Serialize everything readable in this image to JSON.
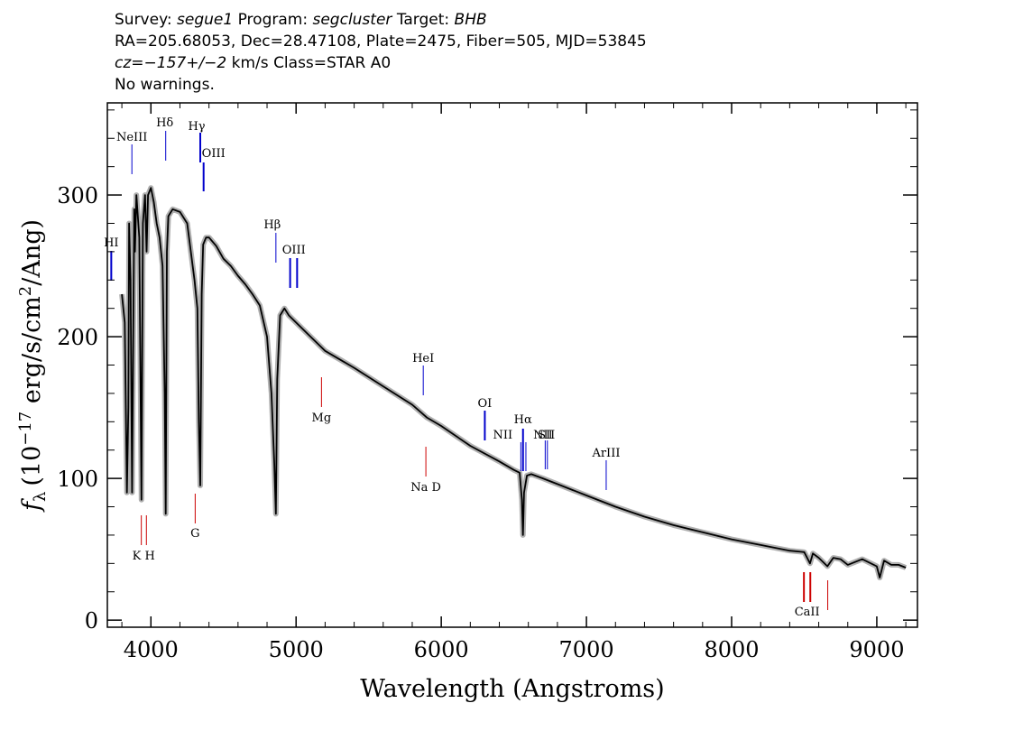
{
  "header": {
    "survey_label": "Survey:",
    "survey": "segue1",
    "program_label": "Program:",
    "program": "segcluster",
    "target_label": "Target:",
    "target": "BHB",
    "line2": "RA=205.68053, Dec=28.47108, Plate=2475, Fiber=505, MJD=53845",
    "cz": "cz=−157+/−2",
    "cz_units": "km/s",
    "class": "Class=STAR A0",
    "warnings": "No warnings."
  },
  "chart_data": {
    "type": "line",
    "xlabel": "Wavelength (Angstroms)",
    "ylabel_prefix": "f",
    "ylabel_sub": "λ",
    "ylabel_units_start": "(10",
    "ylabel_exp1": "−17",
    "ylabel_units_mid": " erg/s/cm",
    "ylabel_exp2": "2",
    "ylabel_units_end": "/Ang)",
    "xlim": [
      3700,
      9280
    ],
    "ylim": [
      -5,
      365
    ],
    "xticks": [
      4000,
      5000,
      6000,
      7000,
      8000,
      9000
    ],
    "xtick_labels": [
      "4000",
      "5000",
      "6000",
      "7000",
      "8000",
      "9000"
    ],
    "yticks": [
      0,
      100,
      200,
      300
    ],
    "ytick_labels": [
      "0",
      "100",
      "200",
      "300"
    ],
    "colors": {
      "spectrum": "#000000",
      "error_band": "#b0b0b0",
      "emission": "#0000cc",
      "absorption": "#cc0000"
    },
    "series": [
      {
        "x": [
          3800,
          3820,
          3835,
          3845,
          3850,
          3860,
          3870,
          3885,
          3890,
          3900,
          3920,
          3935,
          3945,
          3960,
          3970,
          3980,
          4000,
          4020,
          4040,
          4060,
          4080,
          4095,
          4102,
          4110,
          4120,
          4150,
          4200,
          4250,
          4300,
          4320,
          4330,
          4340,
          4350,
          4360,
          4380,
          4400,
          4450,
          4500,
          4550,
          4600,
          4650,
          4700,
          4750,
          4800,
          4830,
          4850,
          4861,
          4870,
          4890,
          4920,
          4950,
          5000,
          5100,
          5200,
          5400,
          5600,
          5800,
          5900,
          6000,
          6200,
          6400,
          6500,
          6540,
          6555,
          6563,
          6570,
          6590,
          6620,
          6700,
          6800,
          7000,
          7200,
          7400,
          7600,
          7800,
          8000,
          8200,
          8400,
          8500,
          8540,
          8560,
          8600,
          8660,
          8700,
          8750,
          8800,
          8900,
          9000,
          9020,
          9050,
          9100,
          9150,
          9200
        ],
        "y": [
          230,
          210,
          90,
          150,
          280,
          240,
          90,
          290,
          260,
          300,
          270,
          85,
          280,
          300,
          260,
          300,
          305,
          295,
          280,
          270,
          250,
          160,
          75,
          260,
          285,
          290,
          288,
          280,
          240,
          220,
          140,
          95,
          230,
          265,
          270,
          270,
          264,
          255,
          250,
          243,
          237,
          230,
          222,
          200,
          160,
          110,
          75,
          170,
          215,
          220,
          215,
          210,
          200,
          190,
          178,
          165,
          152,
          143,
          137,
          123,
          112,
          106,
          104,
          85,
          60,
          90,
          102,
          103,
          100,
          96,
          88,
          80,
          73,
          67,
          62,
          57,
          53,
          49,
          48,
          40,
          47,
          44,
          38,
          44,
          43,
          39,
          43,
          38,
          30,
          42,
          39,
          39,
          37
        ]
      }
    ],
    "emission_lines": [
      {
        "label": "NeIII",
        "x": 3869
      },
      {
        "label": "Hδ",
        "x": 4102
      },
      {
        "label": "Hγ",
        "x": 4340
      },
      {
        "label": "OIII",
        "x": 4363
      },
      {
        "label": "Hβ",
        "x": 4861
      },
      {
        "label": "OIII",
        "x": 4959
      },
      {
        "label": "OIII",
        "x": 5007
      },
      {
        "label": "HeI",
        "x": 5876
      },
      {
        "label": "OI",
        "x": 6300
      },
      {
        "label": "NII",
        "x": 6548
      },
      {
        "label": "Hα",
        "x": 6563
      },
      {
        "label": "NII",
        "x": 6583
      },
      {
        "label": "SII",
        "x": 6716
      },
      {
        "label": "SII",
        "x": 6731
      },
      {
        "label": "ArIII",
        "x": 7136
      },
      {
        "label": "HI",
        "x": 3727
      }
    ],
    "absorption_lines": [
      {
        "label": "K",
        "x": 3934
      },
      {
        "label": "H",
        "x": 3969
      },
      {
        "label": "G",
        "x": 4305
      },
      {
        "label": "Mg",
        "x": 5175
      },
      {
        "label": "Na D",
        "x": 5894
      },
      {
        "label": "CaII",
        "x": 8498
      },
      {
        "label": "CaII",
        "x": 8542
      },
      {
        "label": "CaII",
        "x": 8662
      }
    ],
    "label_texts": [
      "NeIII",
      "Hδ",
      "Hγ",
      "OIII",
      "Hβ",
      "OIII",
      "HeI",
      "OI",
      "NII",
      "Hα",
      "NII",
      "SII",
      "ArIII",
      "HI",
      "K H",
      "G",
      "Mg",
      "Na D",
      "CaII"
    ]
  }
}
